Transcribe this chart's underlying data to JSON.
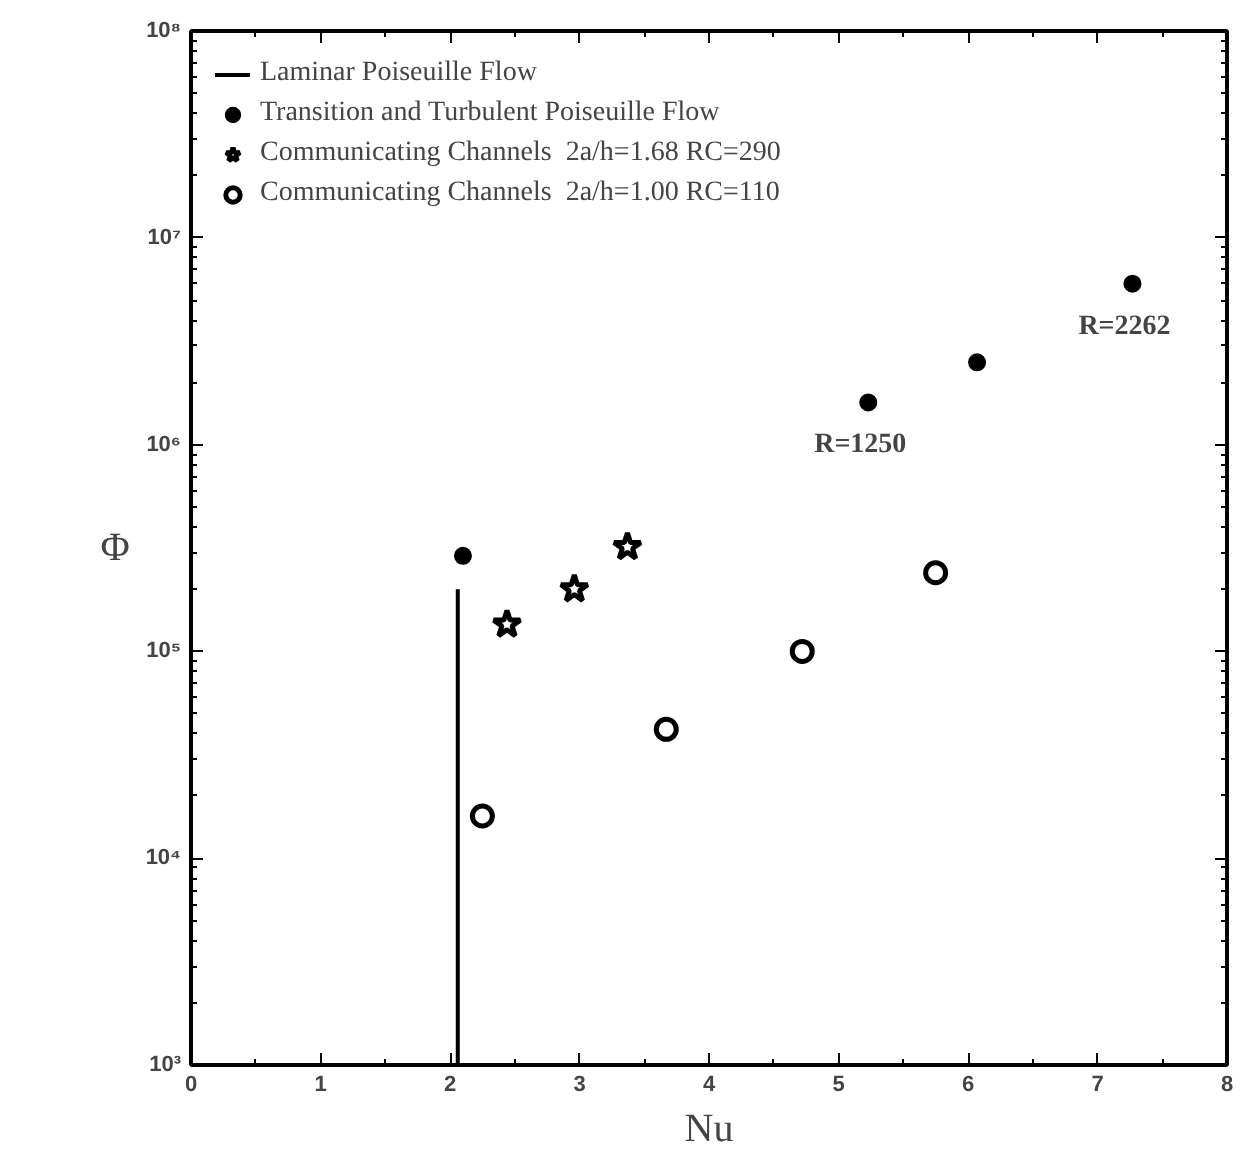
{
  "chart_data": {
    "type": "scatter",
    "xlabel": "Nu",
    "ylabel": "Φ",
    "log": "y",
    "grid": false,
    "legend": "top left",
    "xlim": [
      0,
      8
    ],
    "xticks": [
      0,
      1,
      2,
      3,
      4,
      5,
      6,
      7,
      8
    ],
    "ylim": [
      1000,
      100000000
    ],
    "yticks": [
      {
        "value": 1000,
        "label": "10³"
      },
      {
        "value": 10000,
        "label": "10⁴"
      },
      {
        "value": 100000,
        "label": "10⁵"
      },
      {
        "value": 1000000,
        "label": "10⁶"
      },
      {
        "value": 10000000,
        "label": "10⁷"
      },
      {
        "value": 100000000,
        "label": "10⁸"
      }
    ],
    "series": [
      {
        "name": "Laminar Poiseuille Flow",
        "type": "line",
        "color": "#000000",
        "marker": "none",
        "x": [
          2.06,
          2.06
        ],
        "values": [
          1000,
          200000
        ]
      },
      {
        "name": "Transition and Turbulent Poiseuille Flow",
        "color": "#000000",
        "marker": "circle",
        "x": [
          2.1,
          5.23,
          6.07,
          7.27
        ],
        "values": [
          290000,
          1600000,
          2500000,
          6000000
        ]
      },
      {
        "name": "Communicating Channels  2a/h=1.68 RC=290",
        "color": "#000000",
        "marker": "star",
        "x": [
          2.44,
          2.96,
          3.37
        ],
        "values": [
          135000,
          200000,
          320000
        ]
      },
      {
        "name": "Communicating Channels  2a/h=1.00 RC=110",
        "color": "#000000",
        "marker": "open circle",
        "x": [
          2.25,
          3.67,
          4.72,
          5.75
        ],
        "values": [
          16000,
          42000,
          100000,
          240000
        ]
      }
    ],
    "annotations": [
      {
        "text": "R=1250",
        "x": 5.23,
        "y": 1600000
      },
      {
        "text": "R=2262",
        "x": 7.27,
        "y": 6000000
      }
    ]
  }
}
